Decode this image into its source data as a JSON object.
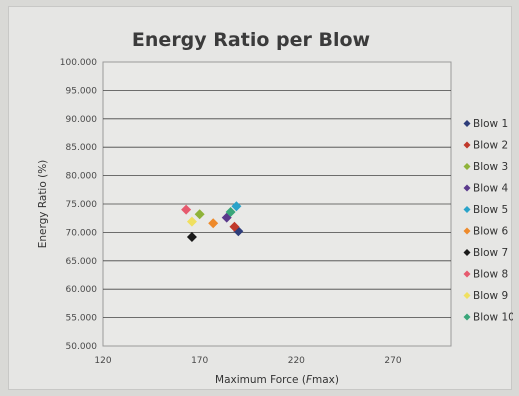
{
  "chart_data": {
    "type": "scatter",
    "title": "Energy Ratio per Blow",
    "xlabel_prefix": "Maximum Force (",
    "xlabel_italic": "F",
    "xlabel_suffix": "max)",
    "ylabel": "Energy Ratio (%)",
    "xlim": [
      120,
      300
    ],
    "ylim": [
      50,
      100
    ],
    "x_ticks": [
      "120",
      "170",
      "220",
      "270"
    ],
    "y_ticks": [
      "50.000",
      "55.000",
      "60.000",
      "65.000",
      "70.000",
      "75.000",
      "80.000",
      "85.000",
      "90.000",
      "95.000",
      "100.000"
    ],
    "grid": true,
    "legend_position": "right",
    "series": [
      {
        "name": "Blow 1",
        "color": "#2e3d7a",
        "x": 190,
        "y": 70.2
      },
      {
        "name": "Blow 2",
        "color": "#c0392b",
        "x": 188,
        "y": 71.0
      },
      {
        "name": "Blow 3",
        "color": "#8fb339",
        "x": 170,
        "y": 73.2
      },
      {
        "name": "Blow 4",
        "color": "#5b3a8c",
        "x": 184,
        "y": 72.6
      },
      {
        "name": "Blow 5",
        "color": "#2aa3c9",
        "x": 189,
        "y": 74.6
      },
      {
        "name": "Blow 6",
        "color": "#ee8a2b",
        "x": 177,
        "y": 71.6
      },
      {
        "name": "Blow 7",
        "color": "#1a1a1a",
        "x": 166,
        "y": 69.2
      },
      {
        "name": "Blow 8",
        "color": "#e65a6e",
        "x": 163,
        "y": 74.0
      },
      {
        "name": "Blow 9",
        "color": "#f0e060",
        "x": 166,
        "y": 71.9
      },
      {
        "name": "Blow 10",
        "color": "#3aa67a",
        "x": 186,
        "y": 73.6
      }
    ]
  }
}
